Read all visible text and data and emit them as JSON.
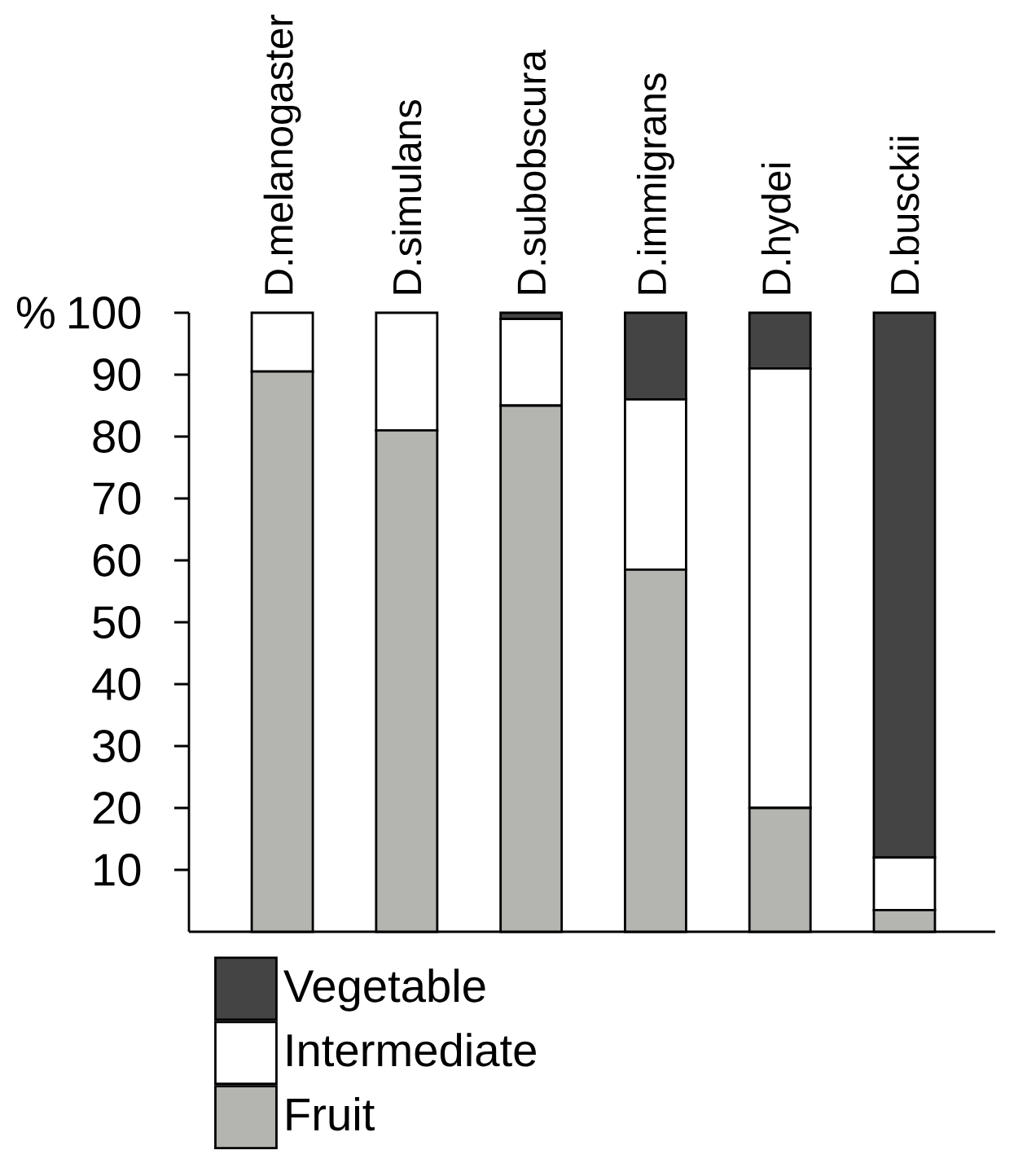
{
  "chart_data": {
    "type": "bar",
    "stacked": true,
    "ylabel": "%",
    "categories": [
      "D.melanogaster",
      "D.simulans",
      "D.subobscura",
      "D.immigrans",
      "D.hydei",
      "D.busckii"
    ],
    "series": [
      {
        "name": "Fruit",
        "color": "#b4b4b0",
        "values": [
          90.5,
          81,
          85,
          58.5,
          20,
          3.5
        ]
      },
      {
        "name": "Intermediate",
        "color": "#ffffff",
        "values": [
          9.5,
          19,
          14,
          27.5,
          71,
          8.5
        ]
      },
      {
        "name": "Vegetable",
        "color": "#444444",
        "values": [
          0,
          0,
          1,
          14,
          9,
          88
        ]
      }
    ],
    "ylim": [
      0,
      100
    ],
    "yticks": [
      10,
      20,
      30,
      40,
      50,
      60,
      70,
      80,
      90,
      100
    ],
    "legend": "bottom"
  }
}
